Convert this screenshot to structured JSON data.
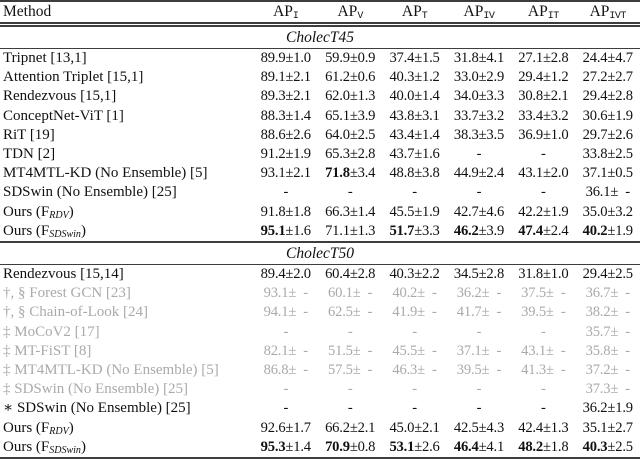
{
  "table": {
    "columns": [
      {
        "base": "Method",
        "sub": ""
      },
      {
        "base": "AP",
        "sub": "I"
      },
      {
        "base": "AP",
        "sub": "V"
      },
      {
        "base": "AP",
        "sub": "T"
      },
      {
        "base": "AP",
        "sub": "IV"
      },
      {
        "base": "AP",
        "sub": "IT"
      },
      {
        "base": "AP",
        "sub": "IVT"
      }
    ],
    "sections": [
      {
        "title": "CholecT45",
        "rows": [
          {
            "name": "Tripnet [13,1]",
            "sub": "",
            "suffix": "",
            "gray": false,
            "cells": [
              {
                "m": "89.9",
                "e": "±1.0",
                "b": false
              },
              {
                "m": "59.9",
                "e": "±0.9",
                "b": false
              },
              {
                "m": "37.4",
                "e": "±1.5",
                "b": false
              },
              {
                "m": "31.8",
                "e": "±4.1",
                "b": false
              },
              {
                "m": "27.1",
                "e": "±2.8",
                "b": false
              },
              {
                "m": "24.4",
                "e": "±4.7",
                "b": false
              }
            ]
          },
          {
            "name": "Attention Triplet [15,1]",
            "sub": "",
            "suffix": "",
            "gray": false,
            "cells": [
              {
                "m": "89.1",
                "e": "±2.1",
                "b": false
              },
              {
                "m": "61.2",
                "e": "±0.6",
                "b": false
              },
              {
                "m": "40.3",
                "e": "±1.2",
                "b": false
              },
              {
                "m": "33.0",
                "e": "±2.9",
                "b": false
              },
              {
                "m": "29.4",
                "e": "±1.2",
                "b": false
              },
              {
                "m": "27.2",
                "e": "±2.7",
                "b": false
              }
            ]
          },
          {
            "name": "Rendezvous [15,1]",
            "sub": "",
            "suffix": "",
            "gray": false,
            "cells": [
              {
                "m": "89.3",
                "e": "±2.1",
                "b": false
              },
              {
                "m": "62.0",
                "e": "±1.3",
                "b": false
              },
              {
                "m": "40.0",
                "e": "±1.4",
                "b": false
              },
              {
                "m": "34.0",
                "e": "±3.3",
                "b": false
              },
              {
                "m": "30.8",
                "e": "±2.1",
                "b": false
              },
              {
                "m": "29.4",
                "e": "±2.8",
                "b": false
              }
            ]
          },
          {
            "name": "ConceptNet-ViT [1]",
            "sub": "",
            "suffix": "",
            "gray": false,
            "cells": [
              {
                "m": "88.3",
                "e": "±1.4",
                "b": false
              },
              {
                "m": "65.1",
                "e": "±3.9",
                "b": false
              },
              {
                "m": "43.8",
                "e": "±3.1",
                "b": false
              },
              {
                "m": "33.7",
                "e": "±3.2",
                "b": false
              },
              {
                "m": "33.4",
                "e": "±3.2",
                "b": false
              },
              {
                "m": "30.6",
                "e": "±1.9",
                "b": false
              }
            ]
          },
          {
            "name": "RiT [19]",
            "sub": "",
            "suffix": "",
            "gray": false,
            "cells": [
              {
                "m": "88.6",
                "e": "±2.6",
                "b": false
              },
              {
                "m": "64.0",
                "e": "±2.5",
                "b": false
              },
              {
                "m": "43.4",
                "e": "±1.4",
                "b": false
              },
              {
                "m": "38.3",
                "e": "±3.5",
                "b": false
              },
              {
                "m": "36.9",
                "e": "±1.0",
                "b": false
              },
              {
                "m": "29.7",
                "e": "±2.6",
                "b": false
              }
            ]
          },
          {
            "name": "TDN [2]",
            "sub": "",
            "suffix": "",
            "gray": false,
            "cells": [
              {
                "m": "91.2",
                "e": "±1.9",
                "b": false
              },
              {
                "m": "65.3",
                "e": "±2.8",
                "b": false
              },
              {
                "m": "43.7",
                "e": "±1.6",
                "b": false
              },
              {
                "m": "-",
                "e": "",
                "b": false
              },
              {
                "m": "-",
                "e": "",
                "b": false
              },
              {
                "m": "33.8",
                "e": "±2.5",
                "b": false
              }
            ]
          },
          {
            "name": "MT4MTL-KD (No Ensemble) [5]",
            "sub": "",
            "suffix": "",
            "gray": false,
            "cells": [
              {
                "m": "93.1",
                "e": "±2.1",
                "b": false
              },
              {
                "m": "71.8",
                "e": "±3.4",
                "b": true
              },
              {
                "m": "48.8",
                "e": "±3.8",
                "b": false
              },
              {
                "m": "44.9",
                "e": "±2.4",
                "b": false
              },
              {
                "m": "43.1",
                "e": "±2.0",
                "b": false
              },
              {
                "m": "37.1",
                "e": "±0.5",
                "b": false
              }
            ]
          },
          {
            "name": "SDSwin (No Ensemble) [25]",
            "sub": "",
            "suffix": "",
            "gray": false,
            "cells": [
              {
                "m": "-",
                "e": "",
                "b": false
              },
              {
                "m": "-",
                "e": "",
                "b": false
              },
              {
                "m": "-",
                "e": "",
                "b": false
              },
              {
                "m": "-",
                "e": "",
                "b": false
              },
              {
                "m": "-",
                "e": "",
                "b": false
              },
              {
                "m": "36.1",
                "e": "± -",
                "b": false
              }
            ]
          },
          {
            "name": "Ours (F",
            "sub": "RDV",
            "suffix": ")",
            "gray": false,
            "cells": [
              {
                "m": "91.8",
                "e": "±1.8",
                "b": false
              },
              {
                "m": "66.3",
                "e": "±1.4",
                "b": false
              },
              {
                "m": "45.5",
                "e": "±1.9",
                "b": false
              },
              {
                "m": "42.7",
                "e": "±4.6",
                "b": false
              },
              {
                "m": "42.2",
                "e": "±1.9",
                "b": false
              },
              {
                "m": "35.0",
                "e": "±3.2",
                "b": false
              }
            ]
          },
          {
            "name": "Ours (F",
            "sub": "SDSwin",
            "suffix": ")",
            "gray": false,
            "cells": [
              {
                "m": "95.1",
                "e": "±1.6",
                "b": true
              },
              {
                "m": "71.1",
                "e": "±1.3",
                "b": false
              },
              {
                "m": "51.7",
                "e": "±3.3",
                "b": true
              },
              {
                "m": "46.2",
                "e": "±3.9",
                "b": true
              },
              {
                "m": "47.4",
                "e": "±2.4",
                "b": true
              },
              {
                "m": "40.2",
                "e": "±1.9",
                "b": true
              }
            ]
          }
        ]
      },
      {
        "title": "CholecT50",
        "rows": [
          {
            "name": "Rendezvous [15,14]",
            "sub": "",
            "suffix": "",
            "gray": false,
            "cells": [
              {
                "m": "89.4",
                "e": "±2.0",
                "b": false
              },
              {
                "m": "60.4",
                "e": "±2.8",
                "b": false
              },
              {
                "m": "40.3",
                "e": "±2.2",
                "b": false
              },
              {
                "m": "34.5",
                "e": "±2.8",
                "b": false
              },
              {
                "m": "31.8",
                "e": "±1.0",
                "b": false
              },
              {
                "m": "29.4",
                "e": "±2.5",
                "b": false
              }
            ]
          },
          {
            "name": "†, § Forest GCN [23]",
            "sub": "",
            "suffix": "",
            "gray": true,
            "cells": [
              {
                "m": "93.1",
                "e": "± -",
                "b": false
              },
              {
                "m": "60.1",
                "e": "± -",
                "b": false
              },
              {
                "m": "40.2",
                "e": "± -",
                "b": false
              },
              {
                "m": "36.2",
                "e": "± -",
                "b": false
              },
              {
                "m": "37.5",
                "e": "± -",
                "b": false
              },
              {
                "m": "36.7",
                "e": "± -",
                "b": false
              }
            ]
          },
          {
            "name": "†, § Chain-of-Look [24]",
            "sub": "",
            "suffix": "",
            "gray": true,
            "cells": [
              {
                "m": "94.1",
                "e": "± -",
                "b": false
              },
              {
                "m": "62.5",
                "e": "± -",
                "b": false
              },
              {
                "m": "41.9",
                "e": "± -",
                "b": false
              },
              {
                "m": "41.7",
                "e": "± -",
                "b": false
              },
              {
                "m": "39.5",
                "e": "± -",
                "b": false
              },
              {
                "m": "38.2",
                "e": "± -",
                "b": false
              }
            ]
          },
          {
            "name": "‡ MoCoV2 [17]",
            "sub": "",
            "suffix": "",
            "gray": true,
            "cells": [
              {
                "m": "-",
                "e": "",
                "b": false
              },
              {
                "m": "-",
                "e": "",
                "b": false
              },
              {
                "m": "-",
                "e": "",
                "b": false
              },
              {
                "m": "-",
                "e": "",
                "b": false
              },
              {
                "m": "-",
                "e": "",
                "b": false
              },
              {
                "m": "35.7",
                "e": "± -",
                "b": false
              }
            ]
          },
          {
            "name": "‡ MT-FiST [8]",
            "sub": "",
            "suffix": "",
            "gray": true,
            "cells": [
              {
                "m": "82.1",
                "e": "± -",
                "b": false
              },
              {
                "m": "51.5",
                "e": "± -",
                "b": false
              },
              {
                "m": "45.5",
                "e": "± -",
                "b": false
              },
              {
                "m": "37.1",
                "e": "± -",
                "b": false
              },
              {
                "m": "43.1",
                "e": "± -",
                "b": false
              },
              {
                "m": "35.8",
                "e": "± -",
                "b": false
              }
            ]
          },
          {
            "name": "‡ MT4MTL-KD (No Ensemble) [5]",
            "sub": "",
            "suffix": "",
            "gray": true,
            "cells": [
              {
                "m": "86.8",
                "e": "± -",
                "b": false
              },
              {
                "m": "57.5",
                "e": "± -",
                "b": false
              },
              {
                "m": "46.3",
                "e": "± -",
                "b": false
              },
              {
                "m": "39.5",
                "e": "± -",
                "b": false
              },
              {
                "m": "41.3",
                "e": "± -",
                "b": false
              },
              {
                "m": "37.2",
                "e": "± -",
                "b": false
              }
            ]
          },
          {
            "name": "‡ SDSwin (No Ensemble) [25]",
            "sub": "",
            "suffix": "",
            "gray": true,
            "cells": [
              {
                "m": "-",
                "e": "",
                "b": false
              },
              {
                "m": "-",
                "e": "",
                "b": false
              },
              {
                "m": "-",
                "e": "",
                "b": false
              },
              {
                "m": "-",
                "e": "",
                "b": false
              },
              {
                "m": "-",
                "e": "",
                "b": false
              },
              {
                "m": "37.3",
                "e": "± -",
                "b": false
              }
            ]
          },
          {
            "name": "∗ SDSwin (No Ensemble) [25]",
            "sub": "",
            "suffix": "",
            "gray": false,
            "cells": [
              {
                "m": "-",
                "e": "",
                "b": false
              },
              {
                "m": "-",
                "e": "",
                "b": false
              },
              {
                "m": "-",
                "e": "",
                "b": false
              },
              {
                "m": "-",
                "e": "",
                "b": false
              },
              {
                "m": "-",
                "e": "",
                "b": false
              },
              {
                "m": "36.2",
                "e": "±1.9",
                "b": false
              }
            ]
          },
          {
            "name": "Ours (F",
            "sub": "RDV",
            "suffix": ")",
            "gray": false,
            "cells": [
              {
                "m": "92.6",
                "e": "±1.7",
                "b": false
              },
              {
                "m": "66.2",
                "e": "±2.1",
                "b": false
              },
              {
                "m": "45.0",
                "e": "±2.1",
                "b": false
              },
              {
                "m": "42.5",
                "e": "±4.3",
                "b": false
              },
              {
                "m": "42.4",
                "e": "±1.3",
                "b": false
              },
              {
                "m": "35.1",
                "e": "±2.7",
                "b": false
              }
            ]
          },
          {
            "name": "Ours (F",
            "sub": "SDSwin",
            "suffix": ")",
            "gray": false,
            "cells": [
              {
                "m": "95.3",
                "e": "±1.4",
                "b": true
              },
              {
                "m": "70.9",
                "e": "±0.8",
                "b": true
              },
              {
                "m": "53.1",
                "e": "±2.6",
                "b": true
              },
              {
                "m": "46.4",
                "e": "±4.1",
                "b": true
              },
              {
                "m": "48.2",
                "e": "±1.8",
                "b": true
              },
              {
                "m": "40.3",
                "e": "±2.5",
                "b": true
              }
            ]
          }
        ]
      }
    ]
  },
  "colors": {
    "text": "#111111",
    "gray_text": "#aaaaaa",
    "rule": "#3d3d3d"
  }
}
